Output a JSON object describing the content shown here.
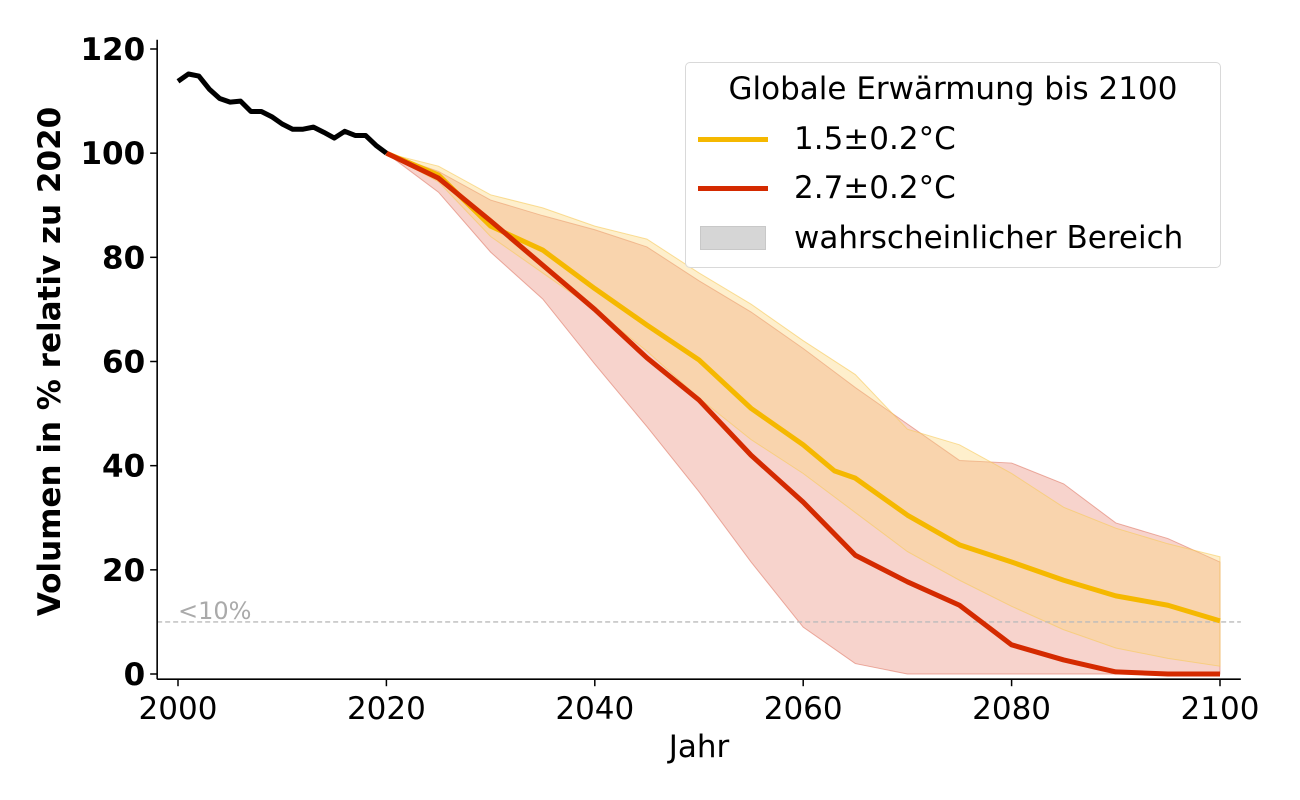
{
  "chart_data": {
    "type": "line",
    "title": "",
    "xlabel": "Jahr",
    "ylabel": "Volumen in % relativ zu 2020",
    "xlim": [
      1998,
      2102
    ],
    "ylim": [
      -1,
      121
    ],
    "xticks": [
      2000,
      2020,
      2040,
      2060,
      2080,
      2100
    ],
    "yticks": [
      0,
      20,
      40,
      60,
      80,
      100,
      120
    ],
    "grid": false,
    "legend": {
      "title": "Globale Erwärmung bis 2100",
      "placement": "top-right",
      "entries": [
        {
          "label": "1.5±0.2°C",
          "kind": "line",
          "color": "#f5b800"
        },
        {
          "label": "2.7±0.2°C",
          "kind": "line",
          "color": "#d42a00"
        },
        {
          "label": "wahrscheinlicher Bereich",
          "kind": "patch",
          "color": "#d6d6d6"
        }
      ]
    },
    "annotations": [
      {
        "text": "<10%",
        "type": "hline",
        "y": 10,
        "color": "#aaaaaa"
      }
    ],
    "historical": {
      "name": "historisch",
      "color": "#000000",
      "x": [
        2000,
        2001,
        2002,
        2003,
        2004,
        2005,
        2006,
        2007,
        2008,
        2009,
        2010,
        2011,
        2012,
        2013,
        2014,
        2015,
        2016,
        2017,
        2018,
        2019,
        2020
      ],
      "y": [
        113.8,
        115.2,
        114.8,
        112.3,
        110.5,
        109.8,
        110.0,
        108.0,
        108.0,
        107.0,
        105.6,
        104.6,
        104.6,
        105.0,
        104.0,
        102.9,
        104.2,
        103.4,
        103.4,
        101.5,
        100.0
      ]
    },
    "series": [
      {
        "name": "1.5±0.2°C",
        "color": "#f5b800",
        "band_color": "#fdd98a",
        "x": [
          2020,
          2025,
          2030,
          2035,
          2040,
          2045,
          2050,
          2055,
          2060,
          2063,
          2065,
          2070,
          2075,
          2080,
          2085,
          2090,
          2095,
          2100
        ],
        "values": [
          100,
          95.8,
          86,
          81.4,
          74,
          67,
          60.3,
          51,
          44,
          39,
          37.6,
          30.5,
          24.8,
          21.5,
          18,
          15,
          13.2,
          10.2
        ],
        "band_x": [
          2020,
          2025,
          2030,
          2035,
          2040,
          2045,
          2050,
          2055,
          2060,
          2065,
          2070,
          2075,
          2080,
          2085,
          2090,
          2095,
          2100
        ],
        "band_upper": [
          100,
          97.5,
          92,
          89.5,
          86,
          83.5,
          77,
          71,
          64,
          57.5,
          47,
          44,
          38.5,
          32,
          28,
          25,
          22.5
        ],
        "band_lower": [
          100,
          94.5,
          84,
          77,
          70,
          62,
          53,
          45,
          38.5,
          31,
          23.5,
          18,
          13,
          8.5,
          5,
          3,
          1.5
        ]
      },
      {
        "name": "2.7±0.2°C",
        "color": "#d42a00",
        "band_color": "#e8826e",
        "x": [
          2020,
          2025,
          2030,
          2035,
          2040,
          2045,
          2050,
          2055,
          2060,
          2065,
          2070,
          2075,
          2080,
          2085,
          2090,
          2095,
          2100
        ],
        "values": [
          100,
          95.2,
          87,
          78.5,
          70,
          60.7,
          52.6,
          42,
          33,
          22.8,
          17.7,
          13.2,
          5.6,
          2.7,
          0.4,
          0,
          0
        ],
        "band_x": [
          2020,
          2025,
          2030,
          2035,
          2040,
          2045,
          2050,
          2055,
          2060,
          2065,
          2070,
          2075,
          2080,
          2085,
          2090,
          2095,
          2100
        ],
        "band_upper": [
          100,
          96.5,
          91,
          88,
          85.3,
          82,
          75.5,
          69.5,
          62.5,
          55,
          48,
          41,
          40.5,
          36.5,
          29,
          26,
          21.5
        ],
        "band_lower": [
          100,
          92.5,
          81,
          72,
          59.5,
          47.5,
          35,
          21.5,
          9,
          2,
          0,
          0,
          0,
          0,
          0,
          0,
          0
        ]
      }
    ]
  }
}
